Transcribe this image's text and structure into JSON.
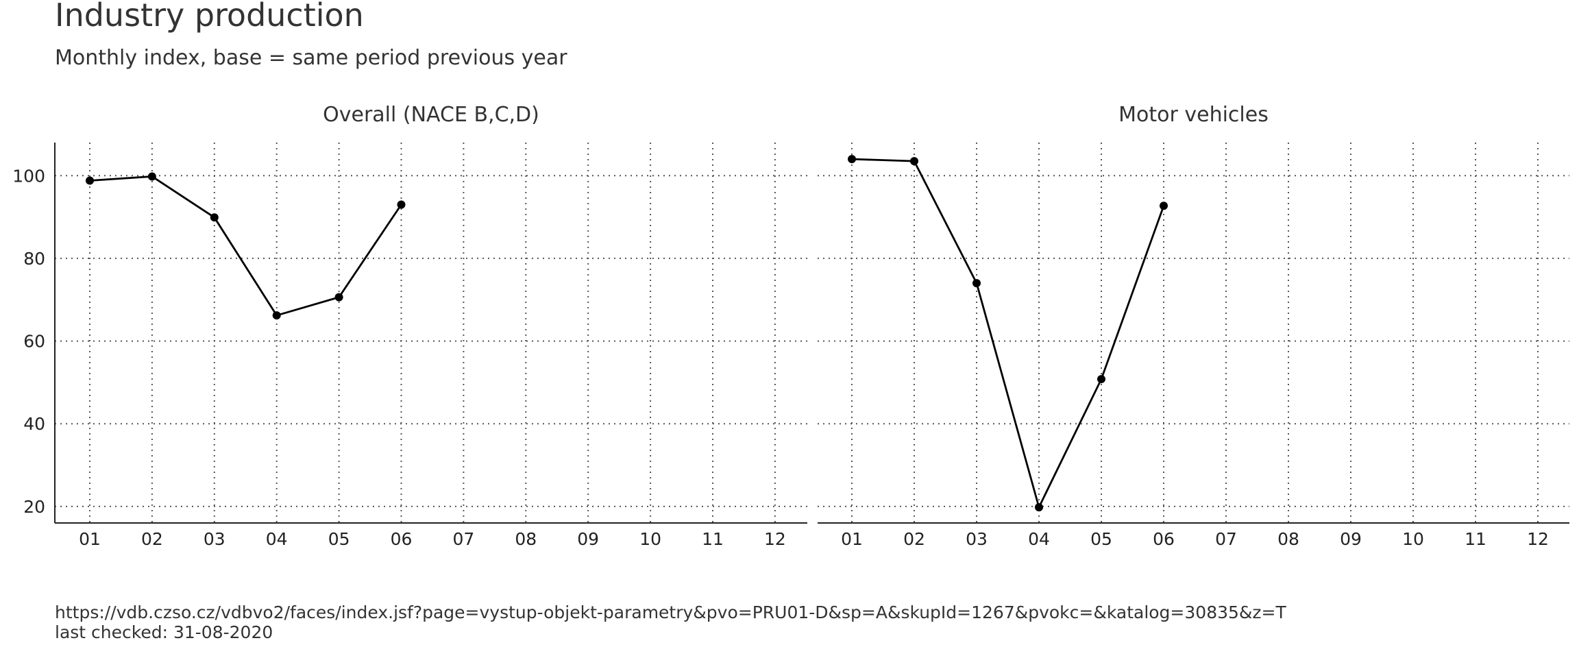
{
  "title": "Industry production",
  "subtitle": "Monthly index, base = same period previous year",
  "caption": {
    "source": "https://vdb.czso.cz/vdbvo2/faces/index.jsf?page=vystup-objekt-parametry&pvo=PRU01-D&sp=A&skupId=1267&pvokc=&katalog=30835&z=T",
    "checked": "last checked: 31-08-2020"
  },
  "chart_data": [
    {
      "type": "line",
      "title": "Overall (NACE B,C,D)",
      "categories": [
        "01",
        "02",
        "03",
        "04",
        "05",
        "06",
        "07",
        "08",
        "09",
        "10",
        "11",
        "12"
      ],
      "values": [
        98.8,
        99.8,
        89.9,
        66.2,
        70.6,
        93.0,
        null,
        null,
        null,
        null,
        null,
        null
      ],
      "yticks": [
        20,
        40,
        60,
        80,
        100
      ],
      "ylim": [
        16,
        108
      ],
      "grid": true,
      "color": "#000000"
    },
    {
      "type": "line",
      "title": "Motor vehicles",
      "categories": [
        "01",
        "02",
        "03",
        "04",
        "05",
        "06",
        "07",
        "08",
        "09",
        "10",
        "11",
        "12"
      ],
      "values": [
        104.0,
        103.5,
        74.0,
        19.8,
        50.8,
        92.7,
        null,
        null,
        null,
        null,
        null,
        null
      ],
      "yticks": [
        20,
        40,
        60,
        80,
        100
      ],
      "ylim": [
        16,
        108
      ],
      "grid": true,
      "color": "#000000"
    }
  ]
}
